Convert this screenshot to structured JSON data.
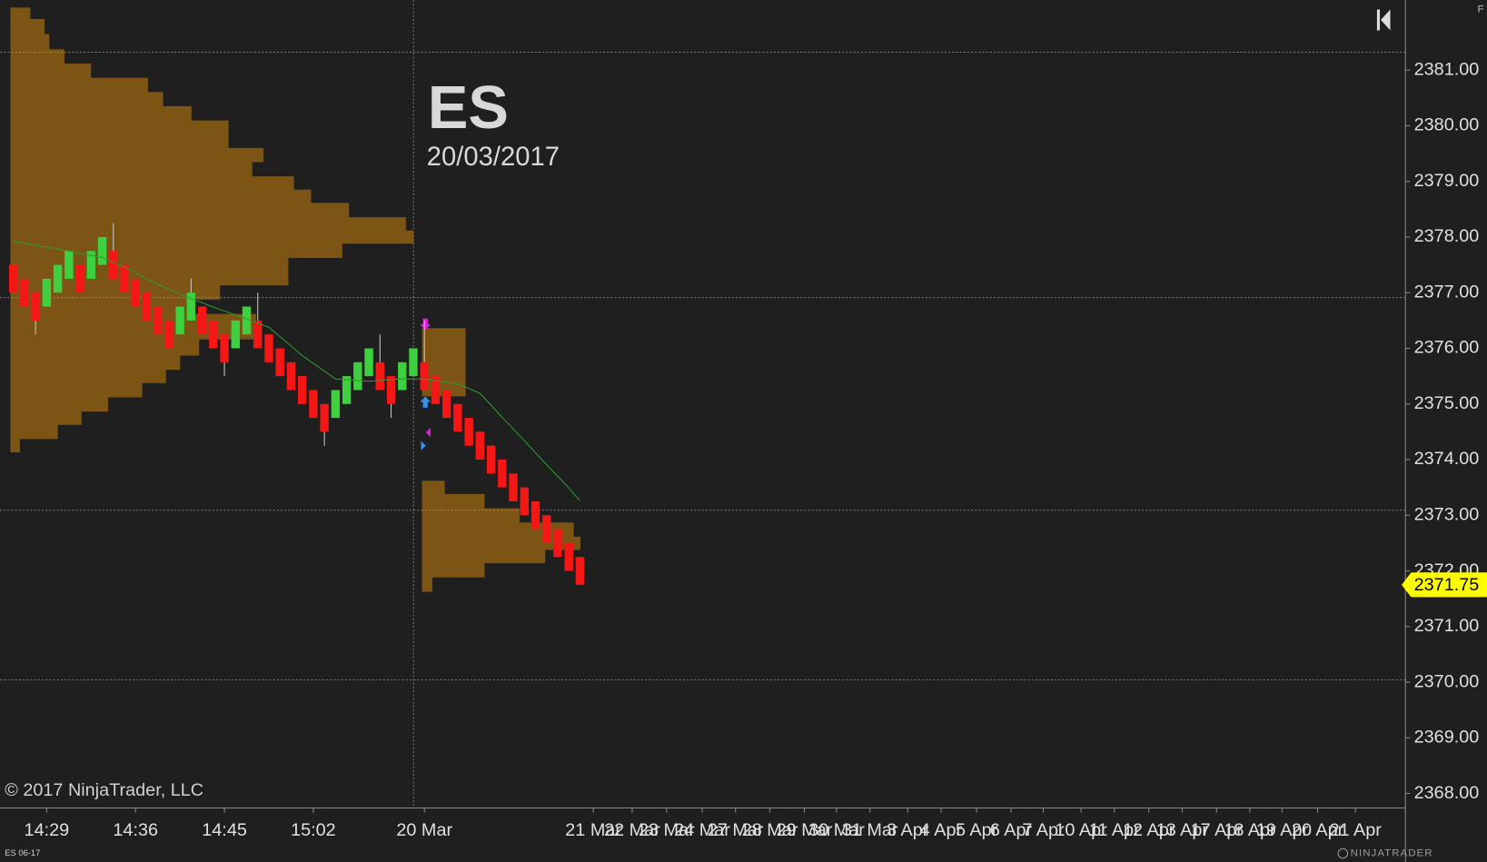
{
  "chart_data": {
    "type": "candlestick",
    "title": "ES",
    "subtitle": "20/03/2017",
    "copyright": "© 2017 NinjaTrader, LLC",
    "instrument": "ES 06-17",
    "brand": "NINJATRADER",
    "corner_button": "F",
    "up_color": "#3ed03e",
    "down_color": "#f51616",
    "wick_color": "#c8c8c8",
    "open": [
      2377.5,
      2377.25,
      2377.0,
      2376.75,
      2377.0,
      2377.25,
      2377.5,
      2377.25,
      2377.5,
      2377.75,
      2377.5,
      2377.25,
      2377.0,
      2376.75,
      2376.5,
      2376.25,
      2376.5,
      2376.75,
      2376.5,
      2376.25,
      2376.0,
      2376.25,
      2376.5,
      2376.25,
      2376.0,
      2375.75,
      2375.5,
      2375.25,
      2375.0,
      2374.75,
      2375.0,
      2375.25,
      2375.5,
      2375.75,
      2375.5,
      2375.25,
      2375.5,
      2375.75,
      2375.5,
      2375.25,
      2375.0,
      2374.75,
      2374.5,
      2374.25,
      2374.0,
      2373.75,
      2373.5,
      2373.25,
      2373.0,
      2372.75,
      2372.5,
      2372.25
    ],
    "high": [
      2377.5,
      2377.25,
      2377.0,
      2377.25,
      2377.5,
      2377.75,
      2377.5,
      2377.75,
      2378.0,
      2378.25,
      2377.5,
      2377.25,
      2377.0,
      2376.75,
      2376.5,
      2376.75,
      2377.25,
      2376.75,
      2376.5,
      2376.25,
      2376.5,
      2376.75,
      2377.0,
      2376.25,
      2376.0,
      2375.75,
      2375.5,
      2375.25,
      2375.0,
      2375.25,
      2375.5,
      2375.75,
      2376.0,
      2376.25,
      2375.5,
      2375.75,
      2376.0,
      2376.5,
      2375.5,
      2375.25,
      2375.0,
      2374.75,
      2374.5,
      2374.25,
      2374.0,
      2373.75,
      2373.5,
      2373.25,
      2373.0,
      2372.75,
      2372.5,
      2372.25
    ],
    "low": [
      2377.0,
      2376.75,
      2376.25,
      2376.75,
      2377.0,
      2377.25,
      2377.0,
      2377.25,
      2377.5,
      2377.25,
      2377.0,
      2376.75,
      2376.5,
      2376.25,
      2376.0,
      2376.25,
      2376.5,
      2376.25,
      2376.0,
      2375.5,
      2376.0,
      2376.25,
      2376.0,
      2375.75,
      2375.5,
      2375.25,
      2375.0,
      2374.75,
      2374.25,
      2374.75,
      2375.0,
      2375.25,
      2375.5,
      2375.25,
      2374.75,
      2375.25,
      2375.5,
      2375.25,
      2375.0,
      2374.75,
      2374.5,
      2374.25,
      2374.0,
      2373.75,
      2373.5,
      2373.25,
      2373.0,
      2372.75,
      2372.5,
      2372.25,
      2372.0,
      2371.75
    ],
    "close": [
      2377.0,
      2376.75,
      2376.5,
      2377.25,
      2377.5,
      2377.75,
      2377.0,
      2377.75,
      2378.0,
      2377.25,
      2377.0,
      2376.75,
      2376.5,
      2376.25,
      2376.0,
      2376.75,
      2377.0,
      2376.25,
      2376.0,
      2375.75,
      2376.5,
      2376.75,
      2376.0,
      2375.75,
      2375.5,
      2375.25,
      2375.0,
      2374.75,
      2374.5,
      2375.25,
      2375.5,
      2375.75,
      2376.0,
      2375.25,
      2375.0,
      2375.75,
      2376.0,
      2375.25,
      2375.0,
      2374.75,
      2374.5,
      2374.25,
      2374.0,
      2373.75,
      2373.5,
      2373.25,
      2373.0,
      2372.75,
      2372.5,
      2372.25,
      2372.0,
      2371.75
    ],
    "average": {
      "color": "#2f9a2f",
      "values": [
        2377.92,
        2377.89,
        2377.85,
        2377.82,
        2377.78,
        2377.75,
        2377.71,
        2377.67,
        2377.63,
        2377.55,
        2377.46,
        2377.36,
        2377.25,
        2377.15,
        2377.06,
        2376.98,
        2376.89,
        2376.82,
        2376.74,
        2376.67,
        2376.6,
        2376.53,
        2376.45,
        2376.38,
        2376.21,
        2376.04,
        2375.87,
        2375.73,
        2375.59,
        2375.45,
        2375.44,
        2375.42,
        2375.41,
        2375.42,
        2375.44,
        2375.45,
        2375.45,
        2375.45,
        2375.42,
        2375.39,
        2375.36,
        2375.28,
        2375.19,
        2374.98,
        2374.76,
        2374.55,
        2374.34,
        2374.12,
        2373.91,
        2373.7,
        2373.49,
        2373.26
      ]
    },
    "last_label": "2371.75",
    "last_color": "#ffff00",
    "levels": [
      2381.32,
      2376.91,
      2373.09,
      2370.04
    ],
    "xlim": [
      -1.2,
      125.3
    ],
    "xticks": [
      {
        "value": 3,
        "label": "14:29"
      },
      {
        "value": 11,
        "label": "14:36"
      },
      {
        "value": 19,
        "label": "14:45"
      },
      {
        "value": 27,
        "label": "15:02"
      },
      {
        "value": 37,
        "label": "20 Mar"
      },
      {
        "value": 52.2,
        "label": "21 Mar"
      },
      {
        "value": 55.7,
        "label": "22 Mar"
      },
      {
        "value": 58.8,
        "label": "23 Mar"
      },
      {
        "value": 62.0,
        "label": "24 Mar"
      },
      {
        "value": 65.0,
        "label": "27 Mar"
      },
      {
        "value": 68.1,
        "label": "28 Mar"
      },
      {
        "value": 71.2,
        "label": "29 Mar"
      },
      {
        "value": 74.1,
        "label": "30 Mar"
      },
      {
        "value": 77.1,
        "label": "31 Mar"
      },
      {
        "value": 80.5,
        "label": "3 Apr"
      },
      {
        "value": 83.5,
        "label": "4 Apr"
      },
      {
        "value": 86.7,
        "label": "5 Apr"
      },
      {
        "value": 89.8,
        "label": "6 Apr"
      },
      {
        "value": 92.7,
        "label": "7 Apr"
      },
      {
        "value": 96.1,
        "label": "10 Apr"
      },
      {
        "value": 99.1,
        "label": "11 Apr"
      },
      {
        "value": 102.2,
        "label": "12 Apr"
      },
      {
        "value": 105.2,
        "label": "13 Apr"
      },
      {
        "value": 108.3,
        "label": "17 Apr"
      },
      {
        "value": 111.3,
        "label": "18 Apr"
      },
      {
        "value": 114.2,
        "label": "19 Apr"
      },
      {
        "value": 117.4,
        "label": "20 Apr"
      },
      {
        "value": 120.8,
        "label": "21 Apr"
      }
    ],
    "ylim": [
      2367.74,
      2382.26
    ],
    "yticks": [
      {
        "value": 2368,
        "label": "2368.00"
      },
      {
        "value": 2369,
        "label": "2369.00"
      },
      {
        "value": 2370,
        "label": "2370.00"
      },
      {
        "value": 2371,
        "label": "2371.00"
      },
      {
        "value": 2372,
        "label": "2372.00"
      },
      {
        "value": 2373,
        "label": "2373.00"
      },
      {
        "value": 2374,
        "label": "2374.00"
      },
      {
        "value": 2375,
        "label": "2375.00"
      },
      {
        "value": 2376,
        "label": "2376.00"
      },
      {
        "value": 2377,
        "label": "2377.00"
      },
      {
        "value": 2378,
        "label": "2378.00"
      },
      {
        "value": 2379,
        "label": "2379.00"
      },
      {
        "value": 2380,
        "label": "2380.00"
      },
      {
        "value": 2381,
        "label": "2381.00"
      }
    ]
  }
}
